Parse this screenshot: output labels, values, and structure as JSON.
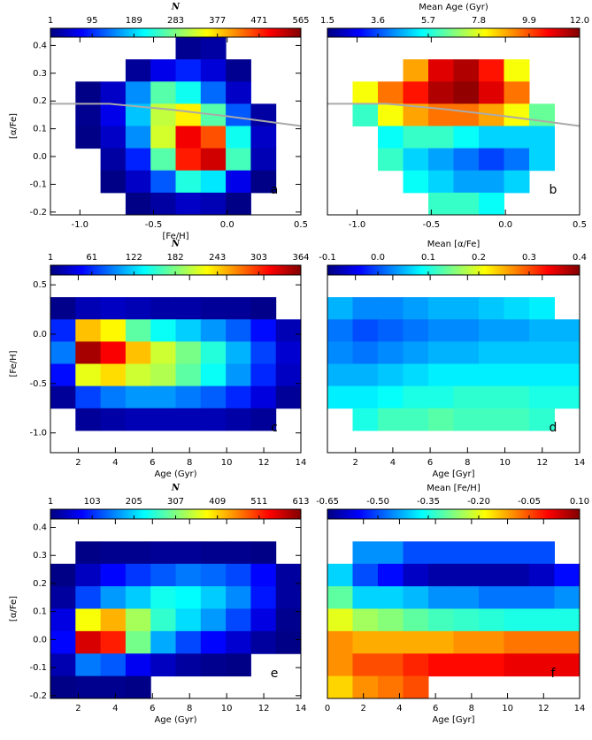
{
  "chart_data": [
    {
      "type": "heatmap",
      "colorbar_label": "N",
      "clim": [
        1,
        565
      ],
      "cticks": [
        1,
        95,
        189,
        283,
        377,
        471,
        565
      ],
      "xlabel": "[Fe/H]",
      "ylabel": "[α/Fe]",
      "label": "a",
      "xlim": [
        -1.2,
        0.5
      ],
      "xticks": [
        {
          "value": -1,
          "label": "-1.0"
        },
        -0.5,
        {
          "value": 0,
          "label": "0.0"
        },
        0.5
      ],
      "ylim": [
        -0.21,
        0.43
      ],
      "yticks": [
        -0.2,
        -0.1,
        {
          "value": 0,
          "label": "0.0"
        },
        0.1,
        0.2,
        0.3,
        0.4
      ],
      "z": [
        [
          null,
          null,
          null,
          null,
          null,
          10,
          20,
          null,
          null,
          null
        ],
        [
          null,
          null,
          null,
          15,
          60,
          90,
          50,
          10,
          null,
          null
        ],
        [
          null,
          5,
          40,
          150,
          260,
          220,
          130,
          40,
          null,
          null
        ],
        [
          null,
          10,
          60,
          180,
          320,
          360,
          260,
          120,
          20,
          null
        ],
        [
          null,
          5,
          40,
          150,
          330,
          500,
          450,
          220,
          40,
          null
        ],
        [
          null,
          null,
          20,
          90,
          260,
          480,
          520,
          250,
          30,
          null
        ],
        [
          null,
          null,
          5,
          40,
          120,
          230,
          200,
          60,
          5,
          null
        ],
        [
          null,
          null,
          null,
          5,
          20,
          40,
          30,
          5,
          null,
          null
        ]
      ],
      "line": {
        "color": "#aaaaaa",
        "x": [
          -1.2,
          -0.8,
          -0.4,
          0.0,
          0.5
        ],
        "y": [
          0.19,
          0.19,
          0.17,
          0.145,
          0.11
        ]
      }
    },
    {
      "type": "heatmap",
      "colorbar_label": "Mean Age (Gyr)",
      "clim": [
        1.5,
        12
      ],
      "cticks": [
        1.5,
        3.6,
        5.7,
        7.8,
        9.9,
        {
          "value": 12,
          "label": "12.0"
        }
      ],
      "label": "b",
      "xlim": [
        -1.2,
        0.5
      ],
      "xticks": [
        {
          "value": -1,
          "label": "-1.0"
        },
        -0.5,
        {
          "value": 0,
          "label": "0.0"
        },
        0.5
      ],
      "ylim": [
        -0.21,
        0.43
      ],
      "z": [
        [
          null,
          null,
          null,
          null,
          null,
          null,
          null,
          null,
          null,
          null
        ],
        [
          null,
          null,
          null,
          9.0,
          11.0,
          11.5,
          10.5,
          8.0,
          null,
          null
        ],
        [
          null,
          8.0,
          9.5,
          10.5,
          11.5,
          11.8,
          11.0,
          9.5,
          null,
          null
        ],
        [
          null,
          6.0,
          8.0,
          9.0,
          9.5,
          9.5,
          9.0,
          8.0,
          6.5,
          null
        ],
        [
          null,
          null,
          5.5,
          6.0,
          6.0,
          5.5,
          5.0,
          5.0,
          5.0,
          null
        ],
        [
          null,
          null,
          6.0,
          5.0,
          4.5,
          4.0,
          3.5,
          4.0,
          5.0,
          null
        ],
        [
          null,
          null,
          null,
          5.5,
          5.0,
          4.5,
          4.5,
          5.0,
          null,
          null
        ],
        [
          null,
          null,
          null,
          null,
          6.0,
          6.0,
          5.5,
          null,
          null,
          null
        ]
      ],
      "line": {
        "color": "#aaaaaa",
        "x": [
          -1.2,
          -0.8,
          -0.4,
          0.0,
          0.5
        ],
        "y": [
          0.19,
          0.19,
          0.17,
          0.145,
          0.11
        ]
      }
    },
    {
      "type": "heatmap",
      "colorbar_label": "N",
      "clim": [
        1,
        364
      ],
      "cticks": [
        1,
        61,
        122,
        182,
        243,
        303,
        364
      ],
      "xlabel": "Age (Gyr)",
      "ylabel": "[Fe/H]",
      "label": "c",
      "xlim": [
        0.5,
        14
      ],
      "xticks": [
        2,
        4,
        6,
        8,
        10,
        12,
        14
      ],
      "ylim": [
        -1.2,
        0.6
      ],
      "yticks": [
        {
          "value": -1,
          "label": "-1.0"
        },
        -0.5,
        {
          "value": 0,
          "label": "0.0"
        },
        0.5
      ],
      "z": [
        [
          null,
          null,
          null,
          null,
          null,
          null,
          null,
          null,
          null,
          null
        ],
        [
          5,
          20,
          25,
          20,
          15,
          15,
          10,
          10,
          5,
          null
        ],
        [
          60,
          250,
          230,
          170,
          140,
          120,
          100,
          80,
          50,
          20
        ],
        [
          90,
          350,
          320,
          250,
          210,
          180,
          150,
          110,
          70,
          30
        ],
        [
          50,
          220,
          240,
          210,
          200,
          170,
          140,
          100,
          60,
          25
        ],
        [
          10,
          70,
          90,
          100,
          100,
          90,
          80,
          60,
          35,
          10
        ],
        [
          null,
          10,
          15,
          20,
          20,
          20,
          20,
          15,
          10,
          null
        ],
        [
          null,
          null,
          null,
          null,
          null,
          null,
          null,
          null,
          null,
          null
        ]
      ]
    },
    {
      "type": "heatmap",
      "colorbar_label": "Mean [α/Fe]",
      "clim": [
        -0.1,
        0.4
      ],
      "cticks": [
        -0.1,
        {
          "value": 0,
          "label": "0.0"
        },
        0.1,
        0.2,
        0.3,
        0.4
      ],
      "xlabel": "Age [Gyr]",
      "label": "d",
      "xlim": [
        0.5,
        14
      ],
      "xticks": [
        2,
        4,
        6,
        8,
        10,
        12,
        14
      ],
      "ylim": [
        -1.2,
        0.6
      ],
      "z": [
        [
          null,
          null,
          null,
          null,
          null,
          null,
          null,
          null,
          null,
          null
        ],
        [
          0.05,
          0.03,
          0.03,
          0.04,
          0.05,
          0.05,
          0.06,
          0.07,
          0.08,
          null
        ],
        [
          0.02,
          0.0,
          0.01,
          0.02,
          0.03,
          0.03,
          0.04,
          0.04,
          0.05,
          0.05
        ],
        [
          0.03,
          0.02,
          0.03,
          0.04,
          0.05,
          0.05,
          0.06,
          0.06,
          0.06,
          0.06
        ],
        [
          0.05,
          0.05,
          0.06,
          0.07,
          0.08,
          0.08,
          0.08,
          0.08,
          0.08,
          0.08
        ],
        [
          0.08,
          0.08,
          0.09,
          0.1,
          0.1,
          0.11,
          0.11,
          0.11,
          0.1,
          0.1
        ],
        [
          null,
          0.1,
          0.12,
          0.12,
          0.13,
          0.12,
          0.12,
          0.12,
          0.11,
          null
        ],
        [
          null,
          null,
          null,
          null,
          null,
          null,
          null,
          null,
          null,
          null
        ]
      ]
    },
    {
      "type": "heatmap",
      "colorbar_label": "N",
      "clim": [
        1,
        613
      ],
      "cticks": [
        1,
        103,
        205,
        307,
        409,
        511,
        613
      ],
      "xlabel": "Age (Gyr)",
      "ylabel": "[α/Fe]",
      "label": "e",
      "xlim": [
        0.5,
        14
      ],
      "xticks": [
        2,
        4,
        6,
        8,
        10,
        12,
        14
      ],
      "ylim": [
        -0.21,
        0.43
      ],
      "yticks": [
        -0.2,
        -0.1,
        {
          "value": 0,
          "label": "0.0"
        },
        0.1,
        0.2,
        0.3,
        0.4
      ],
      "z": [
        [
          null,
          null,
          null,
          null,
          null,
          null,
          null,
          null,
          null,
          null
        ],
        [
          null,
          5,
          10,
          10,
          15,
          15,
          10,
          10,
          5,
          null
        ],
        [
          5,
          40,
          80,
          110,
          130,
          150,
          140,
          120,
          80,
          20
        ],
        [
          20,
          120,
          170,
          200,
          240,
          230,
          200,
          160,
          90,
          20
        ],
        [
          60,
          380,
          430,
          330,
          260,
          210,
          170,
          120,
          60,
          10
        ],
        [
          80,
          560,
          520,
          300,
          180,
          120,
          80,
          50,
          20,
          5
        ],
        [
          30,
          150,
          130,
          70,
          40,
          20,
          10,
          5,
          null,
          null
        ],
        [
          5,
          10,
          10,
          5,
          null,
          null,
          null,
          null,
          null,
          null
        ]
      ]
    },
    {
      "type": "heatmap",
      "colorbar_label": "Mean [Fe/H]",
      "clim": [
        -0.65,
        0.1
      ],
      "cticks": [
        -0.65,
        {
          "value": -0.5,
          "label": "-0.50"
        },
        -0.35,
        {
          "value": -0.2,
          "label": "-0.20"
        },
        -0.05,
        {
          "value": 0.1,
          "label": "0.10"
        }
      ],
      "xlabel": "Age [Gyr]",
      "label": "f",
      "xlim": [
        0,
        14
      ],
      "xticks": [
        0,
        2,
        4,
        6,
        8,
        10,
        12,
        14
      ],
      "ylim": [
        -0.21,
        0.43
      ],
      "z": [
        [
          null,
          null,
          null,
          null,
          null,
          null,
          null,
          null,
          null,
          null
        ],
        [
          null,
          -0.45,
          -0.45,
          -0.5,
          -0.5,
          -0.5,
          -0.5,
          -0.5,
          -0.5,
          null
        ],
        [
          -0.4,
          -0.5,
          -0.55,
          -0.6,
          -0.62,
          -0.62,
          -0.62,
          -0.62,
          -0.6,
          -0.55
        ],
        [
          -0.3,
          -0.4,
          -0.4,
          -0.42,
          -0.45,
          -0.45,
          -0.47,
          -0.47,
          -0.47,
          -0.45
        ],
        [
          -0.2,
          -0.25,
          -0.27,
          -0.3,
          -0.32,
          -0.33,
          -0.34,
          -0.35,
          -0.35,
          -0.35
        ],
        [
          -0.1,
          -0.12,
          -0.12,
          -0.12,
          -0.12,
          -0.1,
          -0.1,
          -0.08,
          -0.08,
          -0.08
        ],
        [
          -0.1,
          -0.05,
          -0.05,
          -0.02,
          0.0,
          0.0,
          0.0,
          0.02,
          0.02,
          0.02
        ],
        [
          -0.15,
          -0.1,
          -0.08,
          -0.05,
          null,
          null,
          null,
          null,
          null,
          null
        ]
      ]
    }
  ]
}
